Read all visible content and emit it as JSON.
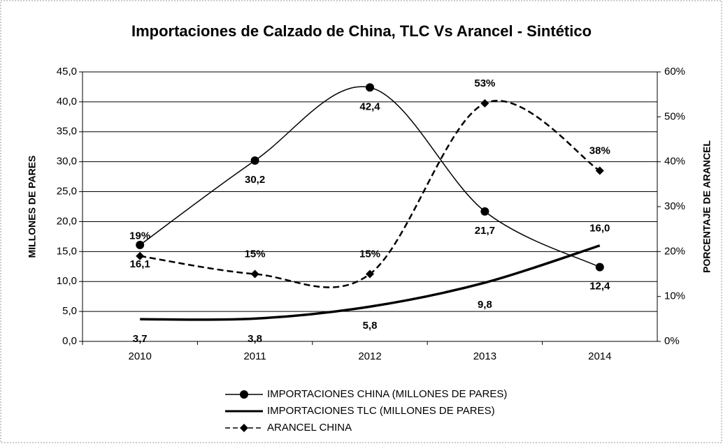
{
  "chart_data": {
    "type": "line",
    "title": "Importaciones de Calzado de China, TLC Vs Arancel - Sintético",
    "y_label": "MILLONES DE PARES",
    "y2_label": "PORCENTAJE DE  ARANCEL",
    "categories": [
      "2010",
      "2011",
      "2012",
      "2013",
      "2014"
    ],
    "series": [
      {
        "name": "IMPORTACIONES CHINA (MILLONES DE PARES)",
        "color": "#000000",
        "marker": "circle",
        "dash": false,
        "values": [
          16.1,
          30.2,
          42.4,
          21.7,
          12.4
        ],
        "value_labels": [
          "16,1",
          "30,2",
          "42,4",
          "21,7",
          "12,4"
        ]
      },
      {
        "name": "IMPORTACIONES TLC (MILLONES DE PARES)",
        "color": "#000000",
        "marker": "none",
        "dash": false,
        "values": [
          3.7,
          3.8,
          5.8,
          9.8,
          16.0
        ],
        "value_labels": [
          "3,7",
          "3,8",
          "5,8",
          "9,8",
          "16,0"
        ]
      },
      {
        "name": "ARANCEL CHINA",
        "color": "#000000",
        "marker": "diamond",
        "dash": true,
        "axis": "y2",
        "values": [
          19,
          15,
          15,
          53,
          38
        ],
        "value_labels": [
          "19%",
          "15%",
          "15%",
          "53%",
          "38%"
        ]
      }
    ],
    "ylim": [
      0,
      45
    ],
    "yticks": [
      {
        "value": 0,
        "label": "0,0"
      },
      {
        "value": 5,
        "label": "5,0"
      },
      {
        "value": 10,
        "label": "10,0"
      },
      {
        "value": 15,
        "label": "15,0"
      },
      {
        "value": 20,
        "label": "20,0"
      },
      {
        "value": 25,
        "label": "25,0"
      },
      {
        "value": 30,
        "label": "30,0"
      },
      {
        "value": 35,
        "label": "35,0"
      },
      {
        "value": 40,
        "label": "40,0"
      },
      {
        "value": 45,
        "label": "45,0"
      }
    ],
    "y2lim": [
      0,
      60
    ],
    "y2ticks": [
      {
        "value": 0,
        "label": "0%"
      },
      {
        "value": 10,
        "label": "10%"
      },
      {
        "value": 20,
        "label": "20%"
      },
      {
        "value": 30,
        "label": "30%"
      },
      {
        "value": 40,
        "label": "40%"
      },
      {
        "value": 50,
        "label": "50%"
      },
      {
        "value": 60,
        "label": "60%"
      }
    ],
    "grid": true,
    "legend": "bottom"
  }
}
